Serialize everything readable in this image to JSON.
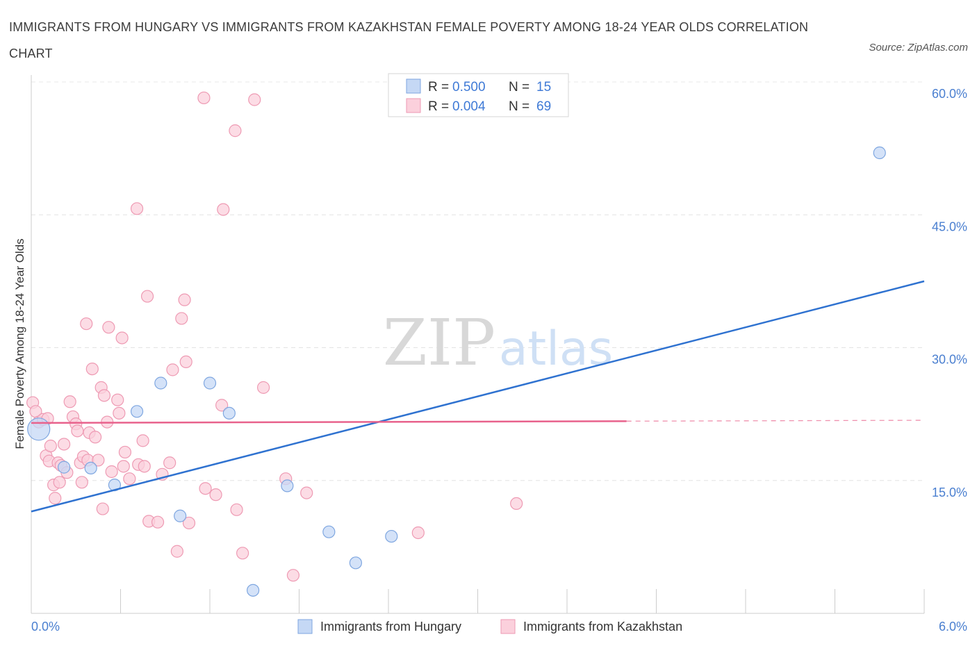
{
  "title": "IMMIGRANTS FROM HUNGARY VS IMMIGRANTS FROM KAZAKHSTAN FEMALE POVERTY AMONG 18-24 YEAR OLDS CORRELATION CHART",
  "source": "Source: ZipAtlas.com",
  "watermark": {
    "zip": "ZIP",
    "atlas": "atlas"
  },
  "legend": {
    "r_label": "R =",
    "n_label": "N =",
    "rows": [
      {
        "r": "0.500",
        "n": "15"
      },
      {
        "r": "0.004",
        "n": "69"
      }
    ]
  },
  "colors": {
    "hungary_fill": "#c5d8f5",
    "hungary_stroke": "#7ea6e0",
    "hungary_line": "#2f72d0",
    "kazakhstan_fill": "#fbd0dc",
    "kazakhstan_stroke": "#ee9ab3",
    "kazakhstan_line": "#e8628c"
  },
  "chart_data": {
    "type": "scatter",
    "title": "IMMIGRANTS FROM HUNGARY VS IMMIGRANTS FROM KAZAKHSTAN FEMALE POVERTY AMONG 18-24 YEAR OLDS CORRELATION CHART",
    "xlabel": "",
    "ylabel": "Female Poverty Among 18-24 Year Olds",
    "xlim": [
      0,
      6
    ],
    "ylim": [
      0,
      60
    ],
    "x_tick_labels": [
      {
        "value": 0,
        "label": "0.0%"
      },
      {
        "value": 6,
        "label": "6.0%"
      }
    ],
    "y_tick_labels": [
      {
        "value": 15,
        "label": "15.0%"
      },
      {
        "value": 30,
        "label": "30.0%"
      },
      {
        "value": 45,
        "label": "45.0%"
      },
      {
        "value": 60,
        "label": "60.0%"
      }
    ],
    "grid": true,
    "legend_position": "top-center",
    "series": [
      {
        "name": "Immigrants from Hungary",
        "points": [
          [
            0.05,
            20.8
          ],
          [
            0.22,
            16.5
          ],
          [
            0.4,
            16.4
          ],
          [
            0.56,
            14.5
          ],
          [
            0.71,
            22.8
          ],
          [
            0.87,
            26.0
          ],
          [
            1.0,
            11.0
          ],
          [
            1.2,
            26.0
          ],
          [
            1.33,
            22.6
          ],
          [
            1.49,
            2.6
          ],
          [
            1.72,
            14.4
          ],
          [
            2.0,
            9.2
          ],
          [
            2.18,
            5.7
          ],
          [
            2.42,
            8.7
          ],
          [
            5.7,
            52.0
          ]
        ],
        "trend": {
          "x": [
            0,
            6
          ],
          "y": [
            11.5,
            37.5
          ]
        }
      },
      {
        "name": "Immigrants from Kazakhstan",
        "points": [
          [
            0.01,
            23.8
          ],
          [
            0.03,
            22.8
          ],
          [
            0.05,
            21.6
          ],
          [
            0.08,
            21.9
          ],
          [
            0.1,
            17.8
          ],
          [
            0.11,
            22.0
          ],
          [
            0.12,
            17.2
          ],
          [
            0.13,
            18.9
          ],
          [
            0.15,
            14.5
          ],
          [
            0.16,
            13.0
          ],
          [
            0.18,
            17.0
          ],
          [
            0.19,
            14.8
          ],
          [
            0.2,
            16.7
          ],
          [
            0.22,
            19.1
          ],
          [
            0.24,
            15.9
          ],
          [
            0.26,
            23.9
          ],
          [
            0.28,
            22.2
          ],
          [
            0.3,
            21.4
          ],
          [
            0.31,
            20.6
          ],
          [
            0.33,
            17.0
          ],
          [
            0.34,
            14.8
          ],
          [
            0.35,
            17.7
          ],
          [
            0.37,
            32.7
          ],
          [
            0.38,
            17.3
          ],
          [
            0.39,
            20.4
          ],
          [
            0.41,
            27.6
          ],
          [
            0.43,
            19.9
          ],
          [
            0.45,
            17.3
          ],
          [
            0.47,
            25.5
          ],
          [
            0.48,
            11.8
          ],
          [
            0.49,
            24.6
          ],
          [
            0.51,
            21.6
          ],
          [
            0.52,
            32.3
          ],
          [
            0.54,
            16.0
          ],
          [
            0.58,
            24.1
          ],
          [
            0.59,
            22.6
          ],
          [
            0.61,
            31.1
          ],
          [
            0.62,
            16.6
          ],
          [
            0.63,
            18.2
          ],
          [
            0.66,
            15.2
          ],
          [
            0.71,
            45.7
          ],
          [
            0.72,
            16.8
          ],
          [
            0.75,
            19.5
          ],
          [
            0.76,
            16.6
          ],
          [
            0.78,
            35.8
          ],
          [
            0.79,
            10.4
          ],
          [
            0.85,
            10.3
          ],
          [
            0.88,
            15.7
          ],
          [
            0.93,
            17.0
          ],
          [
            0.95,
            27.5
          ],
          [
            0.98,
            7.0
          ],
          [
            1.01,
            33.3
          ],
          [
            1.03,
            35.4
          ],
          [
            1.04,
            28.4
          ],
          [
            1.06,
            10.2
          ],
          [
            1.16,
            58.2
          ],
          [
            1.17,
            14.1
          ],
          [
            1.24,
            13.4
          ],
          [
            1.28,
            23.5
          ],
          [
            1.29,
            45.6
          ],
          [
            1.37,
            54.5
          ],
          [
            1.38,
            11.7
          ],
          [
            1.42,
            6.8
          ],
          [
            1.5,
            58.0
          ],
          [
            1.56,
            25.5
          ],
          [
            1.71,
            15.2
          ],
          [
            1.76,
            4.3
          ],
          [
            1.85,
            13.6
          ],
          [
            2.6,
            9.1
          ],
          [
            3.26,
            12.4
          ]
        ],
        "trend": {
          "x": [
            0,
            4.0
          ],
          "y": [
            21.5,
            21.7
          ]
        },
        "trend_dashed": {
          "x": [
            4.0,
            6
          ],
          "y": [
            21.7,
            21.8
          ]
        }
      }
    ]
  }
}
